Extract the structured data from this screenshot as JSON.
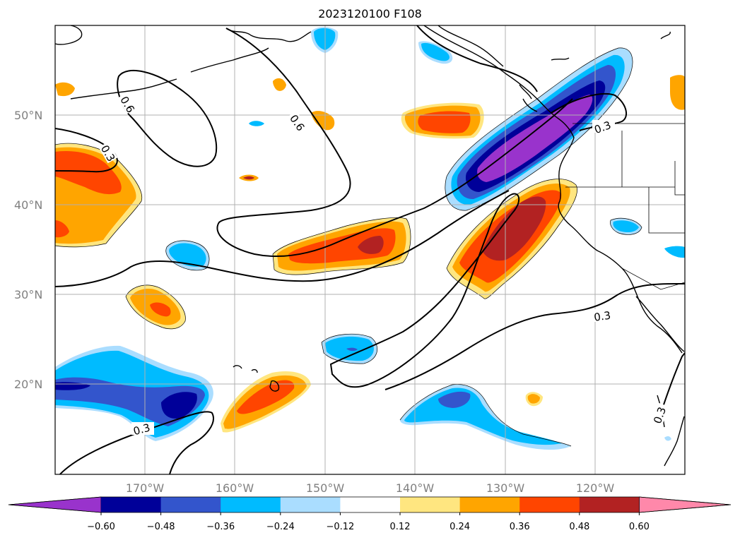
{
  "title": "2023120100 F108",
  "lat_labels": [
    "50°N",
    "40°N",
    "30°N",
    "20°N"
  ],
  "lon_labels": [
    "170°W",
    "160°W",
    "150°W",
    "140°W",
    "130°W",
    "120°W"
  ],
  "contour_labels": [
    "0.6",
    "0.6",
    "0.3",
    "0.3",
    "0.3",
    "0.3",
    "0.3"
  ],
  "colorbar": {
    "ticks": [
      "−0.60",
      "−0.48",
      "−0.36",
      "−0.24",
      "−0.12",
      "0.12",
      "0.24",
      "0.36",
      "0.48",
      "0.60"
    ],
    "colors": [
      "#9933cc",
      "#000099",
      "#3355cc",
      "#00bbff",
      "#aaddff",
      "#ffffff",
      "#ffe680",
      "#ffa500",
      "#ff4500",
      "#b22222",
      "#ff88aa"
    ]
  }
}
